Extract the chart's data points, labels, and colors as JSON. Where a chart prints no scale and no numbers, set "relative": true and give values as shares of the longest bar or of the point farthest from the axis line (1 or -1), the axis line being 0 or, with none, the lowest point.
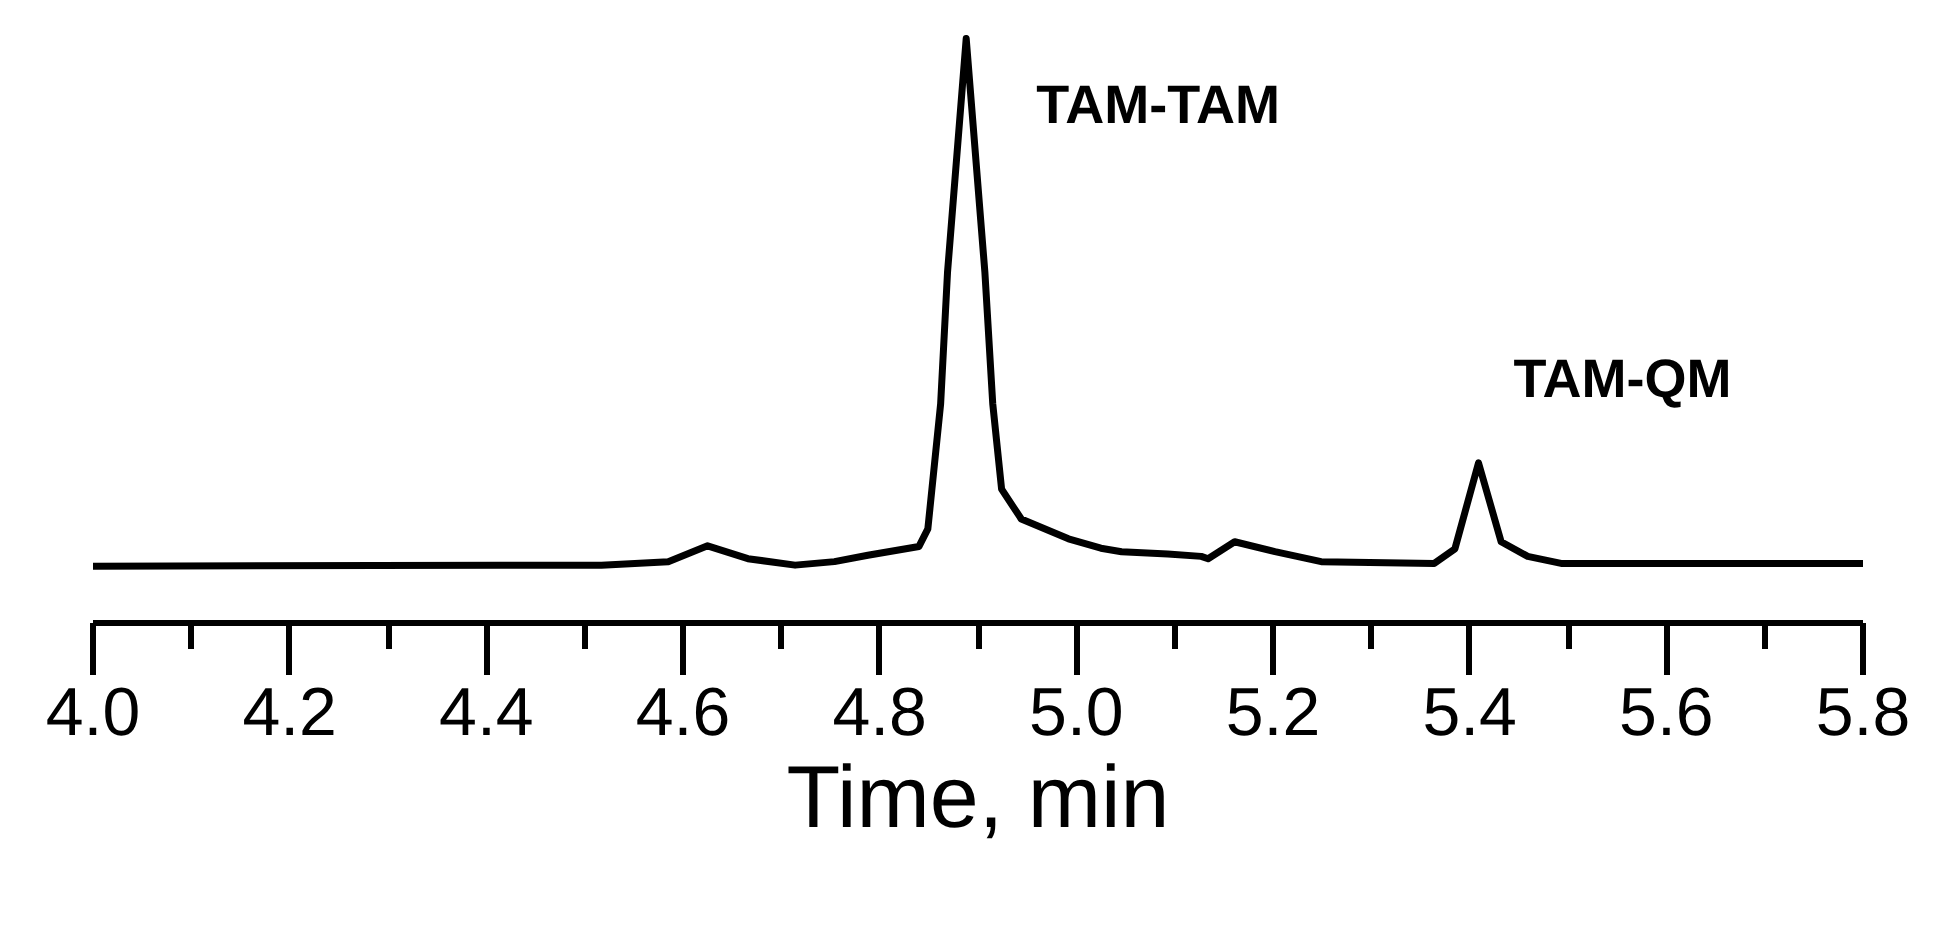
{
  "chart_data": {
    "type": "line",
    "relative": true,
    "xlabel": "Time, min",
    "color": "#000000",
    "x": [
      4.0,
      4.415,
      4.517,
      4.585,
      4.625,
      4.666,
      4.714,
      4.754,
      4.788,
      4.84,
      4.849,
      4.862,
      4.869,
      4.888,
      4.907,
      4.915,
      4.924,
      4.944,
      4.992,
      5.025,
      5.046,
      5.093,
      5.127,
      5.134,
      5.161,
      5.202,
      5.249,
      5.364,
      5.385,
      5.409,
      5.432,
      5.459,
      5.493,
      5.8
    ],
    "values": [
      0.097,
      0.099,
      0.099,
      0.105,
      0.132,
      0.11,
      0.099,
      0.105,
      0.116,
      0.131,
      0.161,
      0.375,
      0.6,
      1.0,
      0.6,
      0.375,
      0.229,
      0.178,
      0.144,
      0.128,
      0.122,
      0.118,
      0.114,
      0.11,
      0.139,
      0.122,
      0.105,
      0.102,
      0.127,
      0.274,
      0.139,
      0.114,
      0.102,
      0.102
    ],
    "xlim": [
      4.0,
      5.8
    ],
    "xticks": [
      {
        "value": 4.0,
        "label": "4.0"
      },
      {
        "value": 4.1,
        "label": null
      },
      {
        "value": 4.2,
        "label": "4.2"
      },
      {
        "value": 4.3,
        "label": null
      },
      {
        "value": 4.4,
        "label": "4.4"
      },
      {
        "value": 4.5,
        "label": null
      },
      {
        "value": 4.6,
        "label": "4.6"
      },
      {
        "value": 4.7,
        "label": null
      },
      {
        "value": 4.8,
        "label": "4.8"
      },
      {
        "value": 4.9,
        "label": null
      },
      {
        "value": 5.0,
        "label": "5.0"
      },
      {
        "value": 5.1,
        "label": null
      },
      {
        "value": 5.2,
        "label": "5.2"
      },
      {
        "value": 5.3,
        "label": null
      },
      {
        "value": 5.4,
        "label": "5.4"
      },
      {
        "value": 5.5,
        "label": null
      },
      {
        "value": 5.6,
        "label": "5.6"
      },
      {
        "value": 5.7,
        "label": null
      },
      {
        "value": 5.8,
        "label": "5.8"
      }
    ],
    "annotations": [
      {
        "text": "TAM-TAM",
        "x": 4.888,
        "y": 1.0
      },
      {
        "text": "TAM-QM",
        "x": 5.409,
        "y": 0.274
      }
    ],
    "tick_labels": "x"
  }
}
